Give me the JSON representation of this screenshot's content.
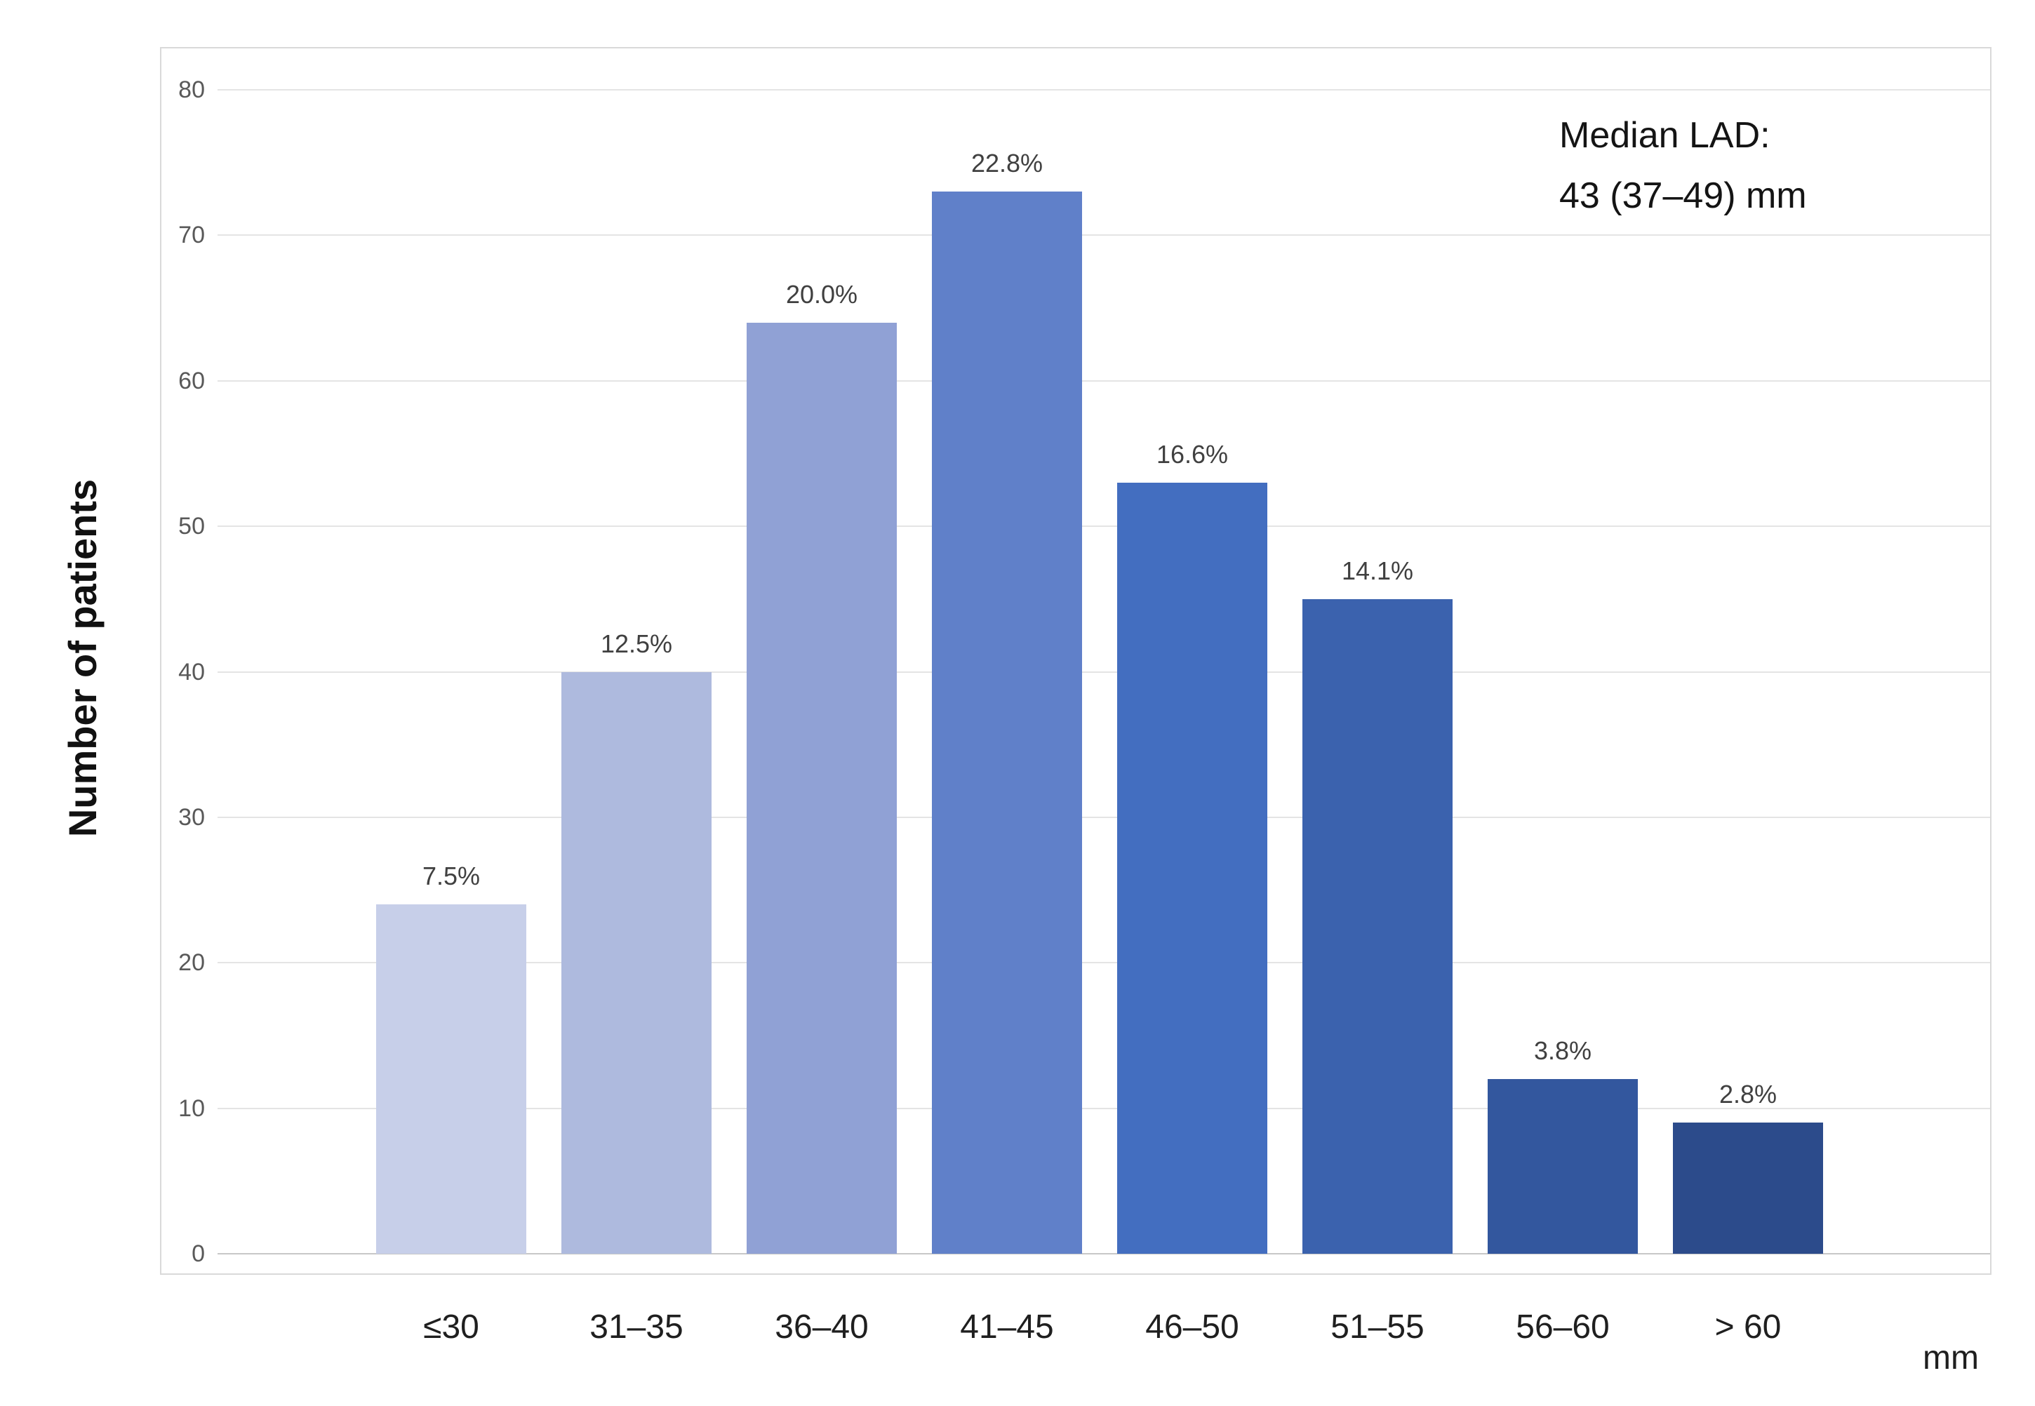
{
  "chart_data": {
    "type": "bar",
    "title": "",
    "categories": [
      "≤30",
      "31–35",
      "36–40",
      "41–45",
      "46–50",
      "51–55",
      "56–60",
      "> 60"
    ],
    "values": [
      24,
      40,
      64,
      73,
      53,
      45,
      12,
      9
    ],
    "bar_percent_labels": [
      "7.5%",
      "12.5%",
      "20.0%",
      "22.8%",
      "16.6%",
      "14.1%",
      "3.8%",
      "2.8%"
    ],
    "bar_colors": [
      "#c7cfe9",
      "#aebade",
      "#90a1d5",
      "#6080c9",
      "#436ec0",
      "#3b62ae",
      "#33579e",
      "#2c4b8b"
    ],
    "xlabel": "",
    "ylabel": "Number of patients",
    "x_unit_label": "mm",
    "ylim": [
      0,
      80
    ],
    "yticks": [
      0,
      10,
      20,
      30,
      40,
      50,
      60,
      70,
      80
    ],
    "grid": true,
    "legend": "none",
    "annotation": {
      "line1": "Median LAD:",
      "line2": "43 (37–49) mm"
    }
  },
  "colors": {
    "gridline": "#e4e4e4",
    "baseline": "#c8c8c8",
    "plot_border": "#d9d9d9",
    "ytick_text": "#595959",
    "xtick_text": "#1f1f1f",
    "percent_text": "#404040",
    "annotation_text": "#141414",
    "background": "#ffffff"
  }
}
